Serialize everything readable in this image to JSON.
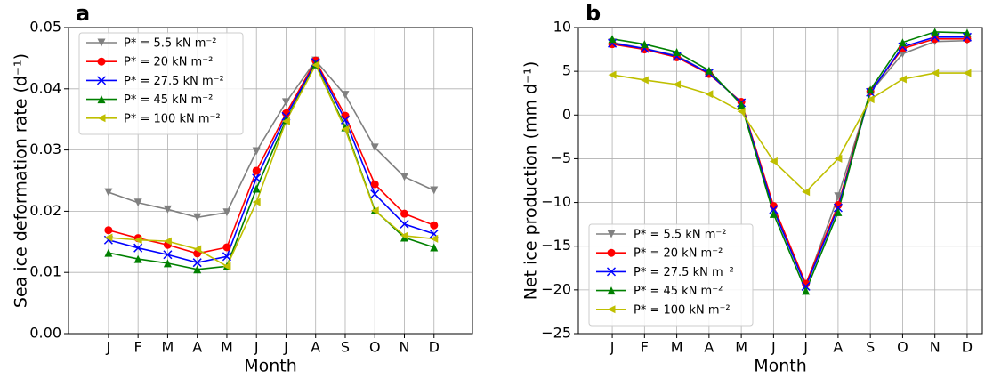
{
  "chart_data": [
    {
      "type": "line",
      "label": "a",
      "xlabel": "Month",
      "ylabel": "Sea ice deformation rate (d⁻¹)",
      "categories": [
        "J",
        "F",
        "M",
        "A",
        "M",
        "J",
        "J",
        "A",
        "S",
        "O",
        "N",
        "D"
      ],
      "ylim": [
        0,
        0.05
      ],
      "yticks": [
        {
          "value": 0,
          "label": "0.00"
        },
        0.01,
        0.02,
        0.03,
        0.04,
        0.05
      ],
      "grid": true,
      "legend": "upper left",
      "series": [
        {
          "name": "P* = 5.5 kN m⁻²",
          "color": "#808080",
          "marker": "v",
          "values": [
            0.0231,
            0.0214,
            0.0203,
            0.019,
            0.0198,
            0.0298,
            0.0378,
            0.0446,
            0.039,
            0.0304,
            0.0256,
            0.0234
          ]
        },
        {
          "name": "P* = 20 kN m⁻²",
          "color": "#ff0000",
          "marker": "o",
          "values": [
            0.0169,
            0.0156,
            0.0145,
            0.0131,
            0.0141,
            0.0266,
            0.036,
            0.0446,
            0.0356,
            0.0244,
            0.0196,
            0.0177
          ]
        },
        {
          "name": "P* = 27.5 kN m⁻²",
          "color": "#0000ff",
          "marker": "x",
          "values": [
            0.0153,
            0.014,
            0.0129,
            0.0116,
            0.0126,
            0.0254,
            0.0355,
            0.0443,
            0.0349,
            0.0228,
            0.0179,
            0.0163
          ]
        },
        {
          "name": "P* = 45 kN m⁻²",
          "color": "#008000",
          "marker": "^",
          "values": [
            0.0132,
            0.0122,
            0.0115,
            0.0105,
            0.011,
            0.0237,
            0.0349,
            0.044,
            0.0337,
            0.0202,
            0.0157,
            0.0141
          ]
        },
        {
          "name": "P* = 100 kN m⁻²",
          "color": "#bfbf00",
          "marker": "<",
          "values": [
            0.0157,
            0.0153,
            0.0151,
            0.0138,
            0.011,
            0.0215,
            0.0347,
            0.0439,
            0.0334,
            0.0201,
            0.016,
            0.0155
          ]
        }
      ]
    },
    {
      "type": "line",
      "label": "b",
      "xlabel": "Month",
      "ylabel": "Net ice production (mm d⁻¹)",
      "categories": [
        "J",
        "F",
        "M",
        "A",
        "M",
        "J",
        "J",
        "A",
        "S",
        "O",
        "N",
        "D"
      ],
      "ylim": [
        -25,
        10
      ],
      "yticks": [
        {
          "value": -25,
          "label": "−25"
        },
        {
          "value": -20,
          "label": "−20"
        },
        {
          "value": -15,
          "label": "−15"
        },
        {
          "value": -10,
          "label": "−10"
        },
        {
          "value": -5,
          "label": "−5"
        },
        0,
        5,
        10
      ],
      "grid": true,
      "legend": "lower left",
      "series": [
        {
          "name": "P* = 5.5 kN m⁻²",
          "color": "#808080",
          "marker": "v",
          "values": [
            8.3,
            7.6,
            6.8,
            4.8,
            1.4,
            -10.8,
            -19.5,
            -9.3,
            2.6,
            7.0,
            8.4,
            8.5
          ]
        },
        {
          "name": "P* = 20 kN m⁻²",
          "color": "#ff0000",
          "marker": "o",
          "values": [
            8.1,
            7.5,
            6.6,
            4.7,
            1.5,
            -10.4,
            -19.3,
            -10.3,
            2.7,
            7.6,
            8.7,
            8.7
          ]
        },
        {
          "name": "P* = 27.5 kN m⁻²",
          "color": "#0000ff",
          "marker": "x",
          "values": [
            8.2,
            7.6,
            6.7,
            4.8,
            1.4,
            -10.8,
            -19.6,
            -10.6,
            2.6,
            7.8,
            8.9,
            8.9
          ]
        },
        {
          "name": "P* = 45 kN m⁻²",
          "color": "#008000",
          "marker": "^",
          "values": [
            8.7,
            8.1,
            7.2,
            5.1,
            1.2,
            -11.3,
            -20.1,
            -11.1,
            2.9,
            8.3,
            9.5,
            9.4
          ]
        },
        {
          "name": "P* = 100 kN m⁻²",
          "color": "#bfbf00",
          "marker": "<",
          "values": [
            4.6,
            4.0,
            3.5,
            2.4,
            0.4,
            -5.3,
            -8.8,
            -5.0,
            1.8,
            4.1,
            4.8,
            4.8
          ]
        }
      ]
    }
  ]
}
